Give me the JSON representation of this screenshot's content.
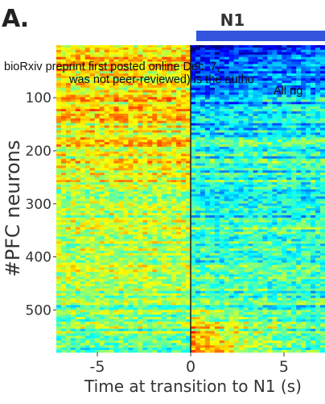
{
  "panel_label": "A.",
  "watermark": {
    "line1": "bioRxiv preprint first posted online Dec. 7,",
    "line2": "was not peer-reviewed) is the autho",
    "line3": "All rig"
  },
  "colors": {
    "condition_bar": "#3355dd",
    "condition_label": "#3344cc",
    "transition_line": "#1a1a1a"
  },
  "chart_data": {
    "type": "heatmap",
    "title": "N1",
    "xlabel": "Time at transition to N1 (s)",
    "ylabel": "#PFC neurons",
    "xlim": [
      -7.2,
      7.2
    ],
    "ylim": [
      1,
      580
    ],
    "x_ticks": [
      -5,
      0,
      5
    ],
    "y_ticks": [
      100,
      200,
      300,
      400,
      500
    ],
    "condition_bar": {
      "label": "N1",
      "x_start": 0.3,
      "x_end": 7.2
    },
    "transition_line_x": 0,
    "colormap": "jet",
    "n_neurons": 580,
    "description_of_values": {
      "pre_transition": "mixed yellow-green, warmer at top rows",
      "post_transition": "blue/cyan at top rows (decreasing), red at bottom rows (increasing)"
    }
  }
}
